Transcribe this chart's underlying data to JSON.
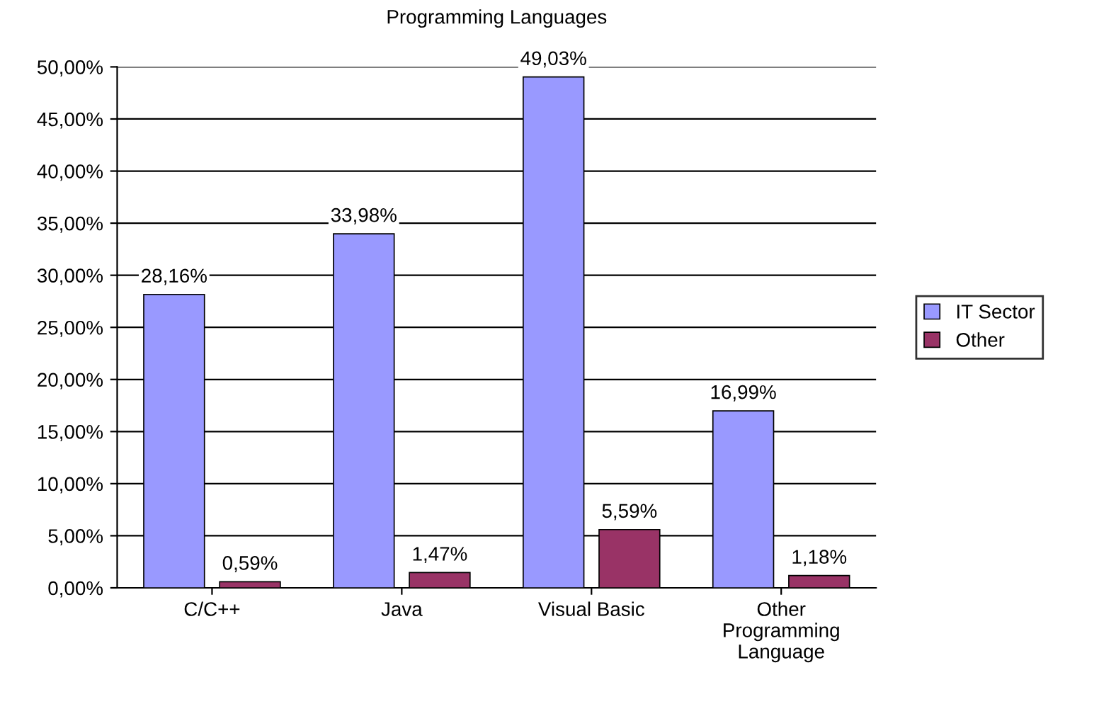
{
  "chart_data": {
    "type": "bar",
    "title": "Programming Languages",
    "categories": [
      "C/C++",
      "Java",
      "Visual Basic",
      "Other\nProgramming\nLanguage"
    ],
    "series": [
      {
        "name": "IT Sector",
        "color": "#9999ff",
        "values": [
          28.16,
          33.98,
          49.03,
          16.99
        ],
        "value_labels": [
          "28,16%",
          "33,98%",
          "49,03%",
          "16,99%"
        ]
      },
      {
        "name": "Other",
        "color": "#993366",
        "values": [
          0.59,
          1.47,
          5.59,
          1.18
        ],
        "value_labels": [
          "0,59%",
          "1,47%",
          "5,59%",
          "1,18%"
        ]
      }
    ],
    "ylim": [
      0,
      50
    ],
    "yticks": [
      {
        "value": 0,
        "label": "0,00%"
      },
      {
        "value": 5,
        "label": "5,00%"
      },
      {
        "value": 10,
        "label": "10,00%"
      },
      {
        "value": 15,
        "label": "15,00%"
      },
      {
        "value": 20,
        "label": "20,00%"
      },
      {
        "value": 25,
        "label": "25,00%"
      },
      {
        "value": 30,
        "label": "30,00%"
      },
      {
        "value": 35,
        "label": "35,00%"
      },
      {
        "value": 40,
        "label": "40,00%"
      },
      {
        "value": 45,
        "label": "45,00%"
      },
      {
        "value": 50,
        "label": "50,00%"
      }
    ],
    "grid": "y",
    "legend": "right"
  }
}
